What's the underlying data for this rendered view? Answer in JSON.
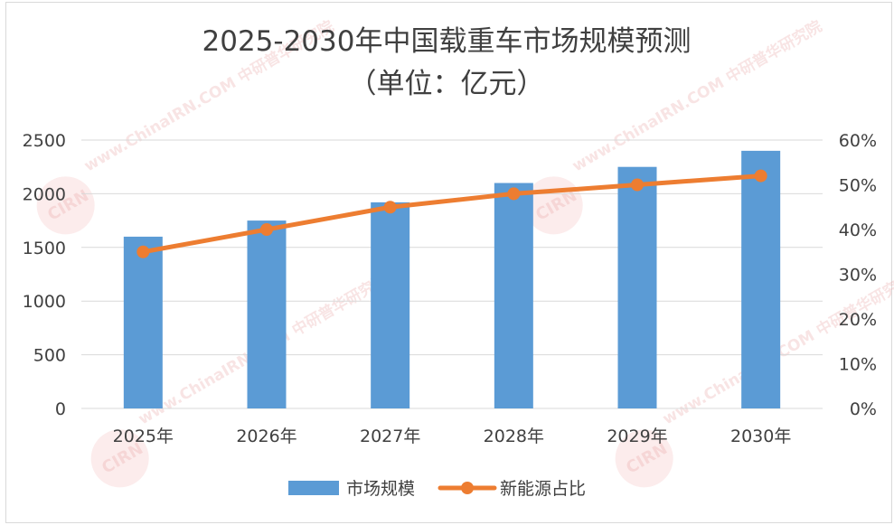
{
  "chart_data": {
    "type": "bar",
    "title": "2025-2030年中国载重车市场规模预测",
    "subtitle": "（单位：亿元）",
    "categories": [
      "2025年",
      "2026年",
      "2027年",
      "2028年",
      "2029年",
      "2030年"
    ],
    "series": [
      {
        "name": "市场规模",
        "type": "bar",
        "axis": "left",
        "color": "#5b9bd5",
        "values": [
          1600,
          1750,
          1920,
          2100,
          2250,
          2400
        ]
      },
      {
        "name": "新能源占比",
        "type": "line",
        "axis": "right",
        "color": "#ed7d31",
        "values": [
          35,
          40,
          45,
          48,
          50,
          52
        ]
      }
    ],
    "y_left": {
      "ylim": [
        0,
        2500
      ],
      "ticks": [
        "0",
        "500",
        "1000",
        "1500",
        "2000",
        "2500"
      ]
    },
    "y_right": {
      "ylim": [
        0,
        60
      ],
      "ticks": [
        "0%",
        "10%",
        "20%",
        "30%",
        "40%",
        "50%",
        "60%"
      ]
    },
    "grid": true,
    "legend_position": "bottom",
    "watermark": "www.ChinaIRN.COM 中研普华研究院",
    "watermark_logo": "CIRN"
  }
}
